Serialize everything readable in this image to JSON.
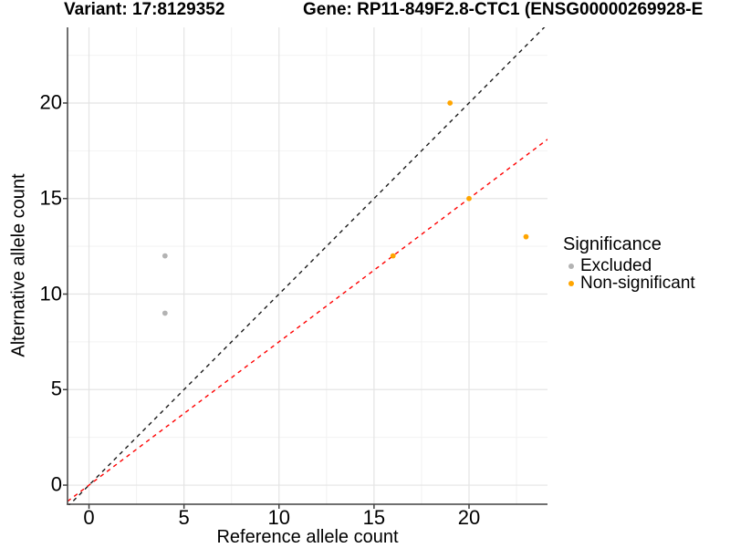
{
  "chart_data": {
    "type": "scatter",
    "variant_title": "Variant: 17:8129352",
    "gene_title": "Gene: RP11-849F2.8-CTC1 (ENSG00000269928-E",
    "xlabel": "Reference allele count",
    "ylabel": "Alternative allele count",
    "x_ticks": [
      0,
      5,
      10,
      15,
      20
    ],
    "y_ticks": [
      0,
      5,
      10,
      15,
      20
    ],
    "x_minor": [
      2.5,
      7.5,
      12.5,
      17.5,
      22.5
    ],
    "y_minor": [
      2.5,
      7.5,
      12.5,
      17.5,
      22.5
    ],
    "xlim": [
      -1.13,
      24.13
    ],
    "ylim": [
      -1.0,
      23.96
    ],
    "series": [
      {
        "name": "Excluded",
        "color": "#B3B3B3",
        "points": [
          [
            4,
            12
          ],
          [
            4,
            9
          ]
        ]
      },
      {
        "name": "Non-significant",
        "color": "#FFA500",
        "points": [
          [
            19,
            20
          ],
          [
            20,
            15
          ],
          [
            16,
            12
          ],
          [
            23,
            13
          ]
        ]
      }
    ],
    "lines": [
      {
        "name": "identity-line",
        "slope": 1,
        "intercept": 0,
        "color": "#1A1A1A",
        "dash": "4.5 4.5"
      },
      {
        "name": "expected-ratio-line",
        "slope": 0.75,
        "intercept": 0,
        "color": "#FF0000",
        "dash": "4.5 4.5"
      }
    ],
    "legend": {
      "title": "Significance",
      "items": [
        {
          "label": "Excluded",
          "color": "#B3B3B3"
        },
        {
          "label": "Non-significant",
          "color": "#FFA500"
        }
      ]
    },
    "grid": {
      "major_color": "#E4E4E4",
      "minor_color": "#F2F2F2"
    },
    "axis_color": "#404040"
  }
}
